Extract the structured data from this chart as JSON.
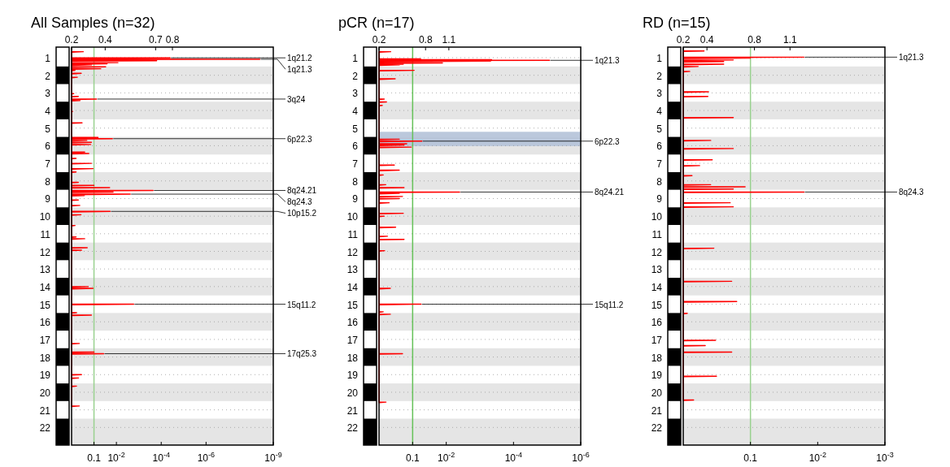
{
  "chart_data": [
    {
      "type": "line",
      "title": "All Samples (n=32)",
      "log": "x",
      "grid": "y",
      "xlim": [
        1,
        1e-09
      ],
      "xticks": [
        {
          "value": 0.1,
          "label": "0.1"
        },
        {
          "value": 0.01,
          "label": "10$^{-2}$"
        },
        {
          "value": 0.0001,
          "label": "10$^{-4}$"
        },
        {
          "value": 1e-06,
          "label": "10$^{-6}$"
        },
        {
          "value": 1e-09,
          "label": "10$^{-9}$"
        }
      ],
      "x2lim": [
        0.2,
        1.4
      ],
      "x2ticks": [
        0.2,
        0.4,
        0.7,
        0.8
      ],
      "ylim": [
        23,
        0.4
      ],
      "yticks": [
        1,
        2,
        3,
        4,
        5,
        6,
        7,
        8,
        9,
        10,
        11,
        12,
        13,
        14,
        15,
        16,
        17,
        18,
        19,
        20,
        21,
        22
      ],
      "bands": [
        {
          "axis": "y",
          "from": 1.5,
          "to": 2.5
        },
        {
          "axis": "y",
          "from": 3.5,
          "to": 4.5
        },
        {
          "axis": "y",
          "from": 5.5,
          "to": 6.5
        },
        {
          "axis": "y",
          "from": 7.5,
          "to": 8.5
        },
        {
          "axis": "y",
          "from": 9.5,
          "to": 10.5
        },
        {
          "axis": "y",
          "from": 11.5,
          "to": 12.5
        },
        {
          "axis": "y",
          "from": 13.5,
          "to": 14.5
        },
        {
          "axis": "y",
          "from": 15.5,
          "to": 16.5
        },
        {
          "axis": "y",
          "from": 17.5,
          "to": 18.5
        },
        {
          "axis": "y",
          "from": 19.5,
          "to": 20.5
        },
        {
          "axis": "y",
          "from": 21.5,
          "to": 23
        }
      ],
      "ref_lines": [
        {
          "axis": "x",
          "value": 0.1,
          "color": "#99d18f"
        }
      ],
      "series": [
        {
          "color": "#ff0000",
          "x": [
            1,
            0.3,
            1,
            1,
            4e-05,
            1,
            1,
            4e-09,
            1,
            1,
            0.00016,
            1,
            1,
            0.0085,
            1,
            1,
            0.026,
            1,
            1,
            0.13,
            1,
            1,
            0.03,
            1,
            1,
            0.05,
            1,
            1,
            0.7,
            1,
            1,
            0.37,
            1,
            1,
            0.55,
            1,
            1,
            0.8,
            1,
            1,
            0.5,
            1,
            1,
            0.077,
            1,
            1,
            0.42,
            1,
            1,
            0.9,
            1,
            1,
            0.34,
            1,
            1,
            0.066,
            1,
            1,
            0.015,
            1,
            1,
            0.21,
            1,
            1,
            0.13,
            1,
            1,
            0.14,
            1,
            1,
            0.26,
            1,
            1,
            0.17,
            1,
            1,
            0.63,
            1,
            1,
            0.13,
            1,
            1,
            0.11,
            1,
            1,
            0.63,
            1,
            1,
            0.5,
            1,
            1,
            0.1,
            1,
            1,
            0.02,
            1,
            1,
            0.00023,
            1,
            1,
            0.014,
            1,
            1,
            0.0024,
            1,
            1,
            0.27,
            1,
            1,
            0.5,
            1,
            1,
            0.43,
            1,
            1,
            0.019,
            1,
            1,
            0.38,
            1,
            1,
            0.7,
            1,
            1,
            0.63,
            1,
            1,
            0.26,
            1,
            1,
            0.2,
            1,
            1,
            0.36,
            1,
            1,
            0.18,
            1,
            1,
            0.11,
            1,
            1,
            0.0017,
            1,
            1,
            0.6,
            1,
            1,
            0.13,
            1,
            1,
            0.45,
            1,
            1,
            0.1,
            1,
            1,
            0.037,
            1,
            1,
            0.36,
            1,
            1,
            0.49,
            1,
            1,
            0.6,
            1,
            1,
            0.45,
            1
          ],
          "values": [
            0.66,
            0.66,
            0.69,
            1.01,
            1.01,
            1.04,
            1.09,
            1.09,
            1.12,
            1.17,
            1.17,
            1.2,
            1.28,
            1.28,
            1.31,
            1.35,
            1.35,
            1.38,
            1.41,
            1.41,
            1.44,
            1.52,
            1.52,
            1.55,
            1.63,
            1.63,
            1.66,
            1.72,
            1.72,
            1.75,
            1.89,
            1.89,
            1.92,
            2.11,
            2.11,
            2.14,
            3.04,
            3.04,
            3.07,
            3.2,
            3.2,
            3.23,
            3.35,
            3.35,
            3.38,
            3.43,
            3.43,
            3.46,
            4.05,
            4.05,
            4.08,
            4.7,
            4.7,
            4.73,
            5.53,
            5.53,
            5.56,
            5.6,
            5.6,
            5.63,
            5.7,
            5.7,
            5.73,
            5.81,
            5.81,
            5.84,
            5.93,
            5.93,
            5.96,
            6.36,
            6.36,
            6.39,
            6.44,
            6.44,
            6.47,
            6.72,
            6.72,
            6.75,
            7,
            7,
            7.03,
            7.3,
            7.3,
            7.33,
            7.49,
            7.49,
            7.52,
            8.08,
            8.08,
            8.11,
            8.25,
            8.25,
            8.28,
            8.38,
            8.38,
            8.41,
            8.54,
            8.54,
            8.57,
            8.63,
            8.63,
            8.66,
            8.75,
            8.75,
            8.78,
            8.83,
            8.83,
            8.86,
            9.08,
            9.08,
            9.11,
            9.39,
            9.39,
            9.42,
            9.73,
            9.73,
            9.76,
            9.92,
            9.92,
            9.95,
            10.53,
            10.53,
            10.56,
            11.18,
            11.18,
            11.21,
            11.28,
            11.28,
            11.31,
            11.79,
            11.79,
            11.82,
            11.93,
            11.93,
            11.96,
            14,
            14,
            14.03,
            14.1,
            14.1,
            14.13,
            15,
            15,
            15.03,
            15.48,
            15.48,
            15.51,
            15.62,
            15.62,
            15.65,
            17.23,
            17.23,
            17.26,
            17.72,
            17.72,
            17.75,
            17.81,
            17.81,
            17.84,
            19,
            19,
            19.03,
            19.19,
            19.19,
            19.22,
            19.65,
            19.65,
            19.68,
            20.78,
            20.78,
            20.81
          ]
        }
      ],
      "annotations": [
        {
          "text": "1q21.2",
          "x": 4e-05,
          "y": 1.01
        },
        {
          "text": "1q21.3",
          "x": 4e-09,
          "y": 1.09
        },
        {
          "text": "3q24",
          "x": 0.077,
          "y": 3.35
        },
        {
          "text": "6p22.3",
          "x": 0.015,
          "y": 5.6
        },
        {
          "text": "8q24.21",
          "x": 0.00023,
          "y": 8.54
        },
        {
          "text": "8q24.3",
          "x": 0.0024,
          "y": 8.75
        },
        {
          "text": "10p15.2",
          "x": 0.019,
          "y": 9.73
        },
        {
          "text": "15q11.2",
          "x": 0.0017,
          "y": 15
        },
        {
          "text": "17q25.3",
          "x": 0.037,
          "y": 17.81
        }
      ]
    },
    {
      "type": "line",
      "title": "pCR (n=17)",
      "log": "x",
      "grid": "y",
      "xlim": [
        1,
        1e-06
      ],
      "xticks": [
        {
          "value": 0.1,
          "label": "0.1"
        },
        {
          "value": 0.01,
          "label": "10$^{-2}$"
        },
        {
          "value": 0.0001,
          "label": "10$^{-4}$"
        },
        {
          "value": 1e-06,
          "label": "10$^{-6}$"
        }
      ],
      "x2lim": [
        0.2,
        2.8
      ],
      "x2ticks": [
        0.2,
        0.8,
        1.1
      ],
      "ylim": [
        23,
        0.4
      ],
      "yticks": [
        1,
        2,
        3,
        4,
        5,
        6,
        7,
        8,
        9,
        10,
        11,
        12,
        13,
        14,
        15,
        16,
        17,
        18,
        19,
        20,
        21,
        22
      ],
      "bands": [
        {
          "axis": "y",
          "from": 1.5,
          "to": 2.5
        },
        {
          "axis": "y",
          "from": 3.5,
          "to": 4.5
        },
        {
          "axis": "y",
          "from": 5.5,
          "to": 6.5
        },
        {
          "axis": "y",
          "from": 7.5,
          "to": 8.5
        },
        {
          "axis": "y",
          "from": 9.5,
          "to": 10.5
        },
        {
          "axis": "y",
          "from": 11.5,
          "to": 12.5
        },
        {
          "axis": "y",
          "from": 13.5,
          "to": 14.5
        },
        {
          "axis": "y",
          "from": 15.5,
          "to": 16.5
        },
        {
          "axis": "y",
          "from": 17.5,
          "to": 18.5
        },
        {
          "axis": "y",
          "from": 19.5,
          "to": 20.5
        },
        {
          "axis": "y",
          "from": 21.5,
          "to": 23
        },
        {
          "axis": "y",
          "from": 5.21,
          "to": 6.02,
          "color": "#b4c2d8"
        }
      ],
      "ref_lines": [
        {
          "axis": "x",
          "value": 0.1,
          "color": "#66c25a"
        }
      ],
      "series": [
        {
          "color": "#ff0000",
          "x": [
            1,
            0.45,
            1,
            1,
            0.058,
            1,
            1,
            0.00045,
            1,
            1,
            8.5e-06,
            1,
            1,
            0.00048,
            1,
            1,
            0.013,
            1,
            1,
            0.19,
            1,
            1,
            0.25,
            1,
            1,
            0.09,
            1,
            1,
            0.33,
            1,
            1,
            0.7,
            1,
            1,
            0.6,
            1,
            1,
            0.8,
            1,
            1,
            0.25,
            1,
            1,
            0.053,
            1,
            1,
            0.15,
            1,
            1,
            0.18,
            1,
            1,
            0.11,
            1,
            1,
            0.35,
            1,
            1,
            0.25,
            1,
            1,
            0.75,
            1,
            1,
            0.63,
            1,
            1,
            0.18,
            1,
            1,
            0.004,
            1,
            1,
            0.25,
            1,
            1,
            0.2,
            1,
            1,
            0.25,
            1,
            1,
            0.5,
            1,
            1,
            0.19,
            1,
            1,
            0.7,
            1,
            1,
            0.32,
            1,
            1,
            0.56,
            1,
            1,
            0.18,
            1,
            1,
            0.68,
            1,
            1,
            0.46,
            1,
            1,
            0.056,
            1,
            1,
            0.75,
            1,
            1,
            0.46,
            1,
            1,
            0.2,
            1,
            1,
            0.62,
            1
          ],
          "values": [
            0.66,
            0.66,
            0.69,
            1.07,
            1.07,
            1.09,
            1.11,
            1.11,
            1.13,
            1.15,
            1.15,
            1.17,
            1.2,
            1.2,
            1.23,
            1.3,
            1.3,
            1.33,
            1.37,
            1.37,
            1.39,
            1.41,
            1.41,
            1.44,
            1.72,
            1.72,
            1.75,
            2.2,
            2.2,
            2.23,
            3.35,
            3.35,
            3.38,
            3.51,
            3.51,
            3.54,
            3.71,
            3.71,
            3.74,
            5.63,
            5.63,
            5.66,
            5.74,
            5.74,
            5.77,
            5.89,
            5.89,
            5.92,
            5.96,
            5.96,
            5.99,
            6.08,
            6.08,
            6.11,
            7.1,
            7.1,
            7.13,
            7.39,
            7.39,
            7.42,
            7.66,
            7.66,
            7.69,
            8.21,
            8.21,
            8.24,
            8.38,
            8.38,
            8.41,
            8.63,
            8.63,
            8.66,
            8.71,
            8.71,
            8.74,
            8.88,
            8.88,
            8.91,
            9,
            9,
            9.03,
            9.24,
            9.24,
            9.27,
            9.84,
            9.84,
            9.87,
            10,
            10,
            10.03,
            10.63,
            10.63,
            10.66,
            11.14,
            11.14,
            11.17,
            11.32,
            11.32,
            11.35,
            11.96,
            11.96,
            11.99,
            14.1,
            14.1,
            14.13,
            15,
            15,
            15.03,
            15.43,
            15.43,
            15.46,
            15.57,
            15.57,
            15.6,
            17.81,
            17.81,
            17.84,
            20.56,
            20.56,
            20.59
          ]
        }
      ],
      "annotations": [
        {
          "text": "1q21.3",
          "x": 8.5e-06,
          "y": 1.15
        },
        {
          "text": "6p22.3",
          "x": 0.053,
          "y": 5.74
        },
        {
          "text": "8q24.21",
          "x": 0.004,
          "y": 8.63
        },
        {
          "text": "15q11.2",
          "x": 0.056,
          "y": 15
        }
      ]
    },
    {
      "type": "line",
      "title": "RD (n=15)",
      "log": "x",
      "grid": "y",
      "xlim": [
        1,
        0.001
      ],
      "xticks": [
        {
          "value": 0.1,
          "label": "0.1"
        },
        {
          "value": 0.01,
          "label": "10$^{-2}$"
        },
        {
          "value": 0.001,
          "label": "10$^{-3}$"
        }
      ],
      "x2lim": [
        0.2,
        1.9
      ],
      "x2ticks": [
        0.2,
        0.4,
        0.8,
        1.1
      ],
      "ylim": [
        23,
        0.4
      ],
      "yticks": [
        1,
        2,
        3,
        4,
        5,
        6,
        7,
        8,
        9,
        10,
        11,
        12,
        13,
        14,
        15,
        16,
        17,
        18,
        19,
        20,
        21,
        22
      ],
      "bands": [
        {
          "axis": "y",
          "from": 1.5,
          "to": 2.5
        },
        {
          "axis": "y",
          "from": 3.5,
          "to": 4.5
        },
        {
          "axis": "y",
          "from": 5.5,
          "to": 6.5
        },
        {
          "axis": "y",
          "from": 7.5,
          "to": 8.5
        },
        {
          "axis": "y",
          "from": 9.5,
          "to": 10.5
        },
        {
          "axis": "y",
          "from": 11.5,
          "to": 12.5
        },
        {
          "axis": "y",
          "from": 13.5,
          "to": 14.5
        },
        {
          "axis": "y",
          "from": 15.5,
          "to": 16.5
        },
        {
          "axis": "y",
          "from": 17.5,
          "to": 18.5
        },
        {
          "axis": "y",
          "from": 19.5,
          "to": 20.5
        },
        {
          "axis": "y",
          "from": 21.5,
          "to": 23
        }
      ],
      "ref_lines": [
        {
          "axis": "x",
          "value": 0.1,
          "color": "#99d18f"
        }
      ],
      "series": [
        {
          "color": "#ff0000",
          "x": [
            1,
            0.49,
            1,
            1,
            0.016,
            1,
            1,
            0.1,
            1,
            1,
            0.18,
            1,
            1,
            0.25,
            1,
            1,
            0.25,
            1,
            1,
            0.6,
            1,
            1,
            0.8,
            1,
            1,
            0.42,
            1,
            1,
            0.43,
            1,
            1,
            0.18,
            1,
            1,
            0.39,
            1,
            1,
            0.18,
            1,
            1,
            0.37,
            1,
            1,
            0.57,
            1,
            1,
            0.74,
            1,
            1,
            0.39,
            1,
            1,
            0.12,
            1,
            1,
            0.18,
            1,
            1,
            0.016,
            1,
            1,
            0.2,
            1,
            1,
            0.18,
            1,
            1,
            0.35,
            1,
            1,
            0.19,
            1,
            1,
            0.16,
            1,
            1,
            0.87,
            1,
            1,
            0.33,
            1,
            1,
            0.47,
            1,
            1,
            0.19,
            1,
            1,
            0.32,
            1,
            1,
            0.7,
            1
          ],
          "values": [
            0.62,
            0.62,
            0.65,
            0.97,
            0.97,
            1,
            1.02,
            1.02,
            1.05,
            1.13,
            1.13,
            1.16,
            1.22,
            1.22,
            1.25,
            1.37,
            1.37,
            1.4,
            1.5,
            1.5,
            1.53,
            1.78,
            1.78,
            1.81,
            2.94,
            2.94,
            2.97,
            3.2,
            3.2,
            3.23,
            4.4,
            4.4,
            4.43,
            5.7,
            5.7,
            5.73,
            6.16,
            6.16,
            6.19,
            6.8,
            6.8,
            6.83,
            7.13,
            7.13,
            7.16,
            7.7,
            7.7,
            7.73,
            8.21,
            8.21,
            8.24,
            8.33,
            8.33,
            8.36,
            8.46,
            8.46,
            8.49,
            8.63,
            8.63,
            8.66,
            9.24,
            9.24,
            9.27,
            9.47,
            9.47,
            9.5,
            11.82,
            11.82,
            11.85,
            13.7,
            13.7,
            13.73,
            14.85,
            14.85,
            14.88,
            15.52,
            15.52,
            15.55,
            17.05,
            17.05,
            17.08,
            17.35,
            17.35,
            17.38,
            17.72,
            17.72,
            17.75,
            19.09,
            19.09,
            19.12,
            20.44,
            20.44,
            20.47
          ]
        }
      ],
      "annotations": [
        {
          "text": "1q21.3",
          "x": 0.016,
          "y": 0.97
        },
        {
          "text": "8q24.3",
          "x": 0.016,
          "y": 8.63
        }
      ]
    }
  ]
}
